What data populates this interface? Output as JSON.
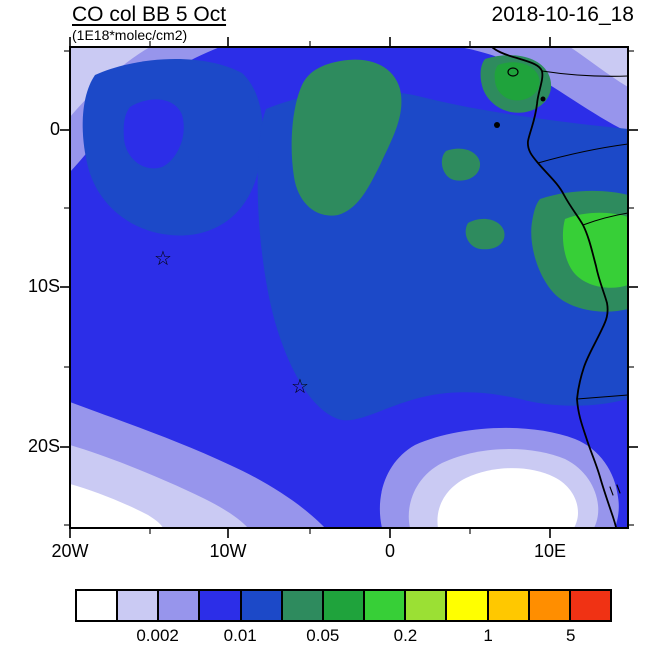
{
  "header": {
    "title": "CO col BB 5 Oct",
    "subtitle": "(1E18*molec/cm2)",
    "timestamp": "2018-10-16_18"
  },
  "axes": {
    "y_ticks": [
      "0",
      "10S",
      "20S"
    ],
    "x_ticks": [
      "20W",
      "10W",
      "0",
      "10E"
    ]
  },
  "colorbar": {
    "colors": [
      "#ffffff",
      "#cacaf3",
      "#9795ec",
      "#2c2ee8",
      "#1c49c8",
      "#2e8b5e",
      "#1fa33c",
      "#37cf37",
      "#9be034",
      "#ffff00",
      "#ffc800",
      "#ff8e00",
      "#f03214"
    ],
    "labels": [
      {
        "text": "0.002",
        "boundary": 2
      },
      {
        "text": "0.01",
        "boundary": 4
      },
      {
        "text": "0.05",
        "boundary": 6
      },
      {
        "text": "0.2",
        "boundary": 8
      },
      {
        "text": "1",
        "boundary": 10
      },
      {
        "text": "5",
        "boundary": 12
      }
    ]
  },
  "chart_data": {
    "type": "heatmap",
    "title": "CO col BB 5 Oct",
    "units": "1E18*molec/cm2",
    "timestamp": "2018-10-16_18",
    "projection": "lat-lon filled contour map over the South Atlantic and western/southern Africa coast",
    "lon_range_deg": [
      -20,
      14.9
    ],
    "lat_range_deg": [
      -25.3,
      5.3
    ],
    "x_tick_lons_deg": [
      -20,
      -10,
      0,
      10
    ],
    "y_tick_lats_deg": [
      0,
      -10,
      -20
    ],
    "x_tick_labels": [
      "20W",
      "10W",
      "0",
      "10E"
    ],
    "y_tick_labels": [
      "0",
      "10S",
      "20S"
    ],
    "contour_levels": [
      0.001,
      0.002,
      0.005,
      0.01,
      0.02,
      0.05,
      0.1,
      0.2,
      0.5,
      1,
      2,
      5
    ],
    "colorbar_tick_labels": [
      "0.002",
      "0.01",
      "0.05",
      "0.2",
      "1",
      "5"
    ],
    "palette": [
      "#ffffff",
      "#cacaf3",
      "#9795ec",
      "#2c2ee8",
      "#1c49c8",
      "#2e8b5e",
      "#1fa33c",
      "#37cf37",
      "#9be034",
      "#ffff00",
      "#ffc800",
      "#ff8e00",
      "#f03214"
    ],
    "markers": [
      {
        "symbol": "open-star",
        "lon": -14.2,
        "lat": -8.1
      },
      {
        "symbol": "open-star",
        "lon": -5.6,
        "lat": -16.2
      }
    ],
    "field_regions": [
      {
        "area": "most of open Atlantic domain",
        "approx_value_range": "0.005-0.02"
      },
      {
        "area": "broad central-eastern maximum extending over Congo/Angola",
        "approx_value_range": "0.02-0.05"
      },
      {
        "area": "plume patches NW of the Congo coast, near the coast and over inland Congo/Angola",
        "approx_value_range": "0.05-0.2"
      },
      {
        "area": "top-left corner, bottom-left corner, south-central ocean and Namibian coastal strip",
        "approx_value_range": "below 0.005 with white minima below 0.001"
      }
    ],
    "legend_position": "horizontal colorbar below map",
    "grid": false
  }
}
